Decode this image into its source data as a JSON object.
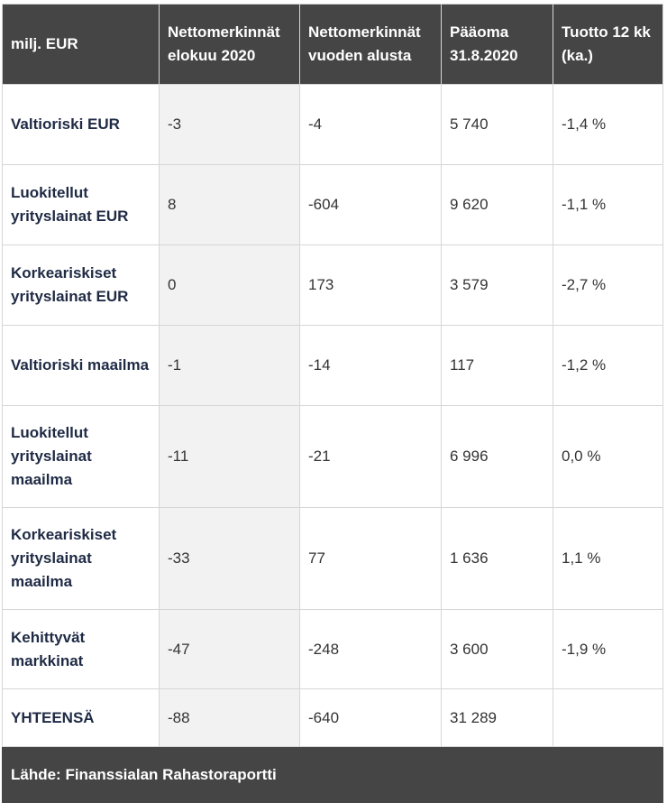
{
  "headers": [
    "milj. EUR",
    "Nettomerkinnät elokuu 2020",
    "Nettomerkinnät vuoden alusta",
    "Pääoma 31.8.2020",
    "Tuotto 12 kk (ka.)"
  ],
  "rows": [
    {
      "label": "Valtioriski EUR",
      "cells": [
        "-3",
        "-4",
        "5 740",
        "-1,4 %"
      ]
    },
    {
      "label": "Luokitellut yrityslainat EUR",
      "cells": [
        "8",
        "-604",
        "9 620",
        "-1,1 %"
      ]
    },
    {
      "label": "Korkeariskiset yrityslainat EUR",
      "cells": [
        "0",
        "173",
        "3 579",
        "-2,7 %"
      ]
    },
    {
      "label": "Valtioriski maailma",
      "cells": [
        "-1",
        "-14",
        "117",
        "-1,2 %"
      ]
    },
    {
      "label": "Luokitellut yrityslainat maailma",
      "cells": [
        "-11",
        "-21",
        "6 996",
        "0,0 %"
      ]
    },
    {
      "label": "Korkeariskiset yrityslainat maailma",
      "cells": [
        "-33",
        "77",
        "1 636",
        "1,1 %"
      ]
    },
    {
      "label": "Kehittyvät markkinat",
      "cells": [
        "-47",
        "-248",
        "3 600",
        "-1,9 %"
      ]
    },
    {
      "label": "YHTEENSÄ",
      "cells": [
        "-88",
        "-640",
        "31 289",
        ""
      ]
    }
  ],
  "footer": "Lähde: Finanssialan Rahastoraportti",
  "colors": {
    "header_bg": "#454545",
    "header_text": "#ffffff",
    "label_text": "#1f2a44",
    "shaded_col": "#f2f2f2",
    "border": "#d6d6d6"
  }
}
